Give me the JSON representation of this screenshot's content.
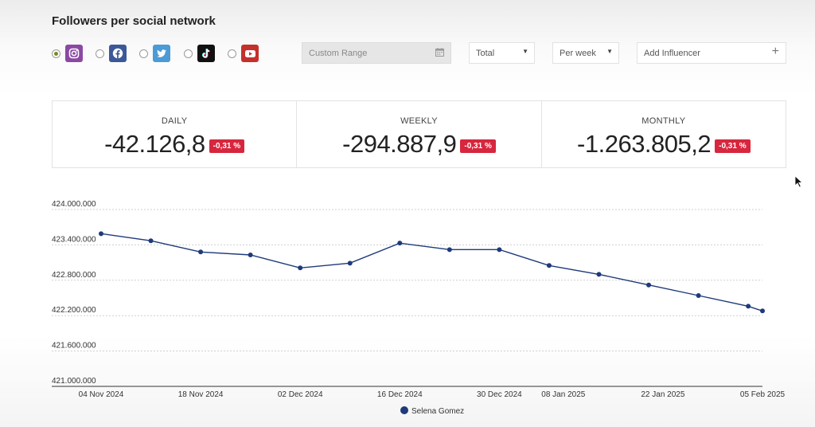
{
  "header": {
    "title": "Followers per social network"
  },
  "networks": [
    {
      "name": "instagram",
      "color": "#8a4aa3",
      "selected": true
    },
    {
      "name": "facebook",
      "color": "#3b5998",
      "selected": false
    },
    {
      "name": "twitter",
      "color": "#4a9bd6",
      "selected": false
    },
    {
      "name": "tiktok",
      "color": "#111111",
      "selected": false
    },
    {
      "name": "youtube",
      "color": "#c4302b",
      "selected": false
    }
  ],
  "filters": {
    "range_placeholder": "Custom Range",
    "mode_value": "Total",
    "period_value": "Per week",
    "influencer_placeholder": "Add Influencer"
  },
  "stats": [
    {
      "label": "DAILY",
      "value": "-42.126,8",
      "change": "-0,31 %"
    },
    {
      "label": "WEEKLY",
      "value": "-294.887,9",
      "change": "-0,31 %"
    },
    {
      "label": "MONTHLY",
      "value": "-1.263.805,2",
      "change": "-0,31 %"
    }
  ],
  "chart_data": {
    "type": "line",
    "x": [
      "04 Nov 2024",
      "11 Nov 2024",
      "18 Nov 2024",
      "25 Nov 2024",
      "02 Dec 2024",
      "09 Dec 2024",
      "16 Dec 2024",
      "23 Dec 2024",
      "30 Dec 2024",
      "06 Jan 2025",
      "13 Jan 2025",
      "20 Jan 2025",
      "27 Jan 2025",
      "03 Feb 2025",
      "05 Feb 2025"
    ],
    "x_ticks": [
      "04 Nov 2024",
      "18 Nov 2024",
      "02 Dec 2024",
      "16 Dec 2024",
      "30 Dec 2024",
      "08 Jan 2025",
      "22 Jan 2025",
      "05 Feb 2025"
    ],
    "series": [
      {
        "name": "Selena Gomez",
        "color": "#1f3a7a",
        "values": [
          423590000,
          423470000,
          423280000,
          423230000,
          423010000,
          423090000,
          423430000,
          423320000,
          423320000,
          423050000,
          422900000,
          422720000,
          422540000,
          422360000,
          422280000
        ]
      }
    ],
    "y_ticks": [
      "424.000.000",
      "423.400.000",
      "422.800.000",
      "422.200.000",
      "421.600.000",
      "421.000.000"
    ],
    "ylim": [
      421000000,
      424000000
    ],
    "grid": true,
    "legend": "bottom-center"
  }
}
